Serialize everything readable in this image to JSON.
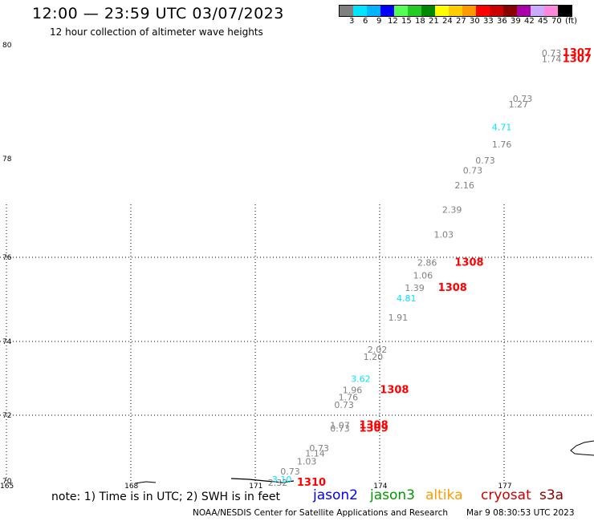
{
  "header": {
    "title": "12:00 — 23:59 UTC 03/07/2023",
    "subtitle": "12 hour collection of altimeter wave heights"
  },
  "colorbar": {
    "colors": [
      "#808080",
      "#00e5ff",
      "#00b4ff",
      "#0000ff",
      "#55ff55",
      "#22cc22",
      "#008800",
      "#ffff00",
      "#ffcc00",
      "#ff9900",
      "#ff0000",
      "#cc0000",
      "#880000",
      "#aa00aa",
      "#ccaaff",
      "#ff88dd",
      "#000000"
    ],
    "labels": [
      "3",
      "6",
      "9",
      "12",
      "15",
      "18",
      "21",
      "24",
      "27",
      "30",
      "33",
      "36",
      "39",
      "42",
      "45",
      "70"
    ],
    "unit": "(ft)"
  },
  "map": {
    "lon_range": [
      165,
      179
    ],
    "lat_range": [
      70,
      80
    ],
    "lon_ticks": [
      "165",
      "168",
      "171",
      "174",
      "177"
    ],
    "lat_ticks": [
      "70",
      "72",
      "74",
      "76",
      "78",
      "80"
    ],
    "observations": [
      {
        "value": "0.73",
        "lon": 177.9,
        "lat": 79.8,
        "color": "#808080"
      },
      {
        "value": "1.74",
        "lon": 177.9,
        "lat": 79.7,
        "color": "#808080"
      },
      {
        "value": "1307",
        "lon": 178.4,
        "lat": 79.8,
        "color": "#ff0000",
        "bold": true
      },
      {
        "value": "1307",
        "lon": 178.4,
        "lat": 79.7,
        "color": "#ff0000",
        "bold": true
      },
      {
        "value": "0.73",
        "lon": 177.2,
        "lat": 79.0,
        "color": "#808080"
      },
      {
        "value": "1.27",
        "lon": 177.1,
        "lat": 78.9,
        "color": "#808080"
      },
      {
        "value": "4.71",
        "lon": 176.7,
        "lat": 78.5,
        "color": "#00e5ff"
      },
      {
        "value": "1.76",
        "lon": 176.7,
        "lat": 78.2,
        "color": "#808080"
      },
      {
        "value": "0.73",
        "lon": 176.3,
        "lat": 77.9,
        "color": "#808080"
      },
      {
        "value": "0.73",
        "lon": 176.0,
        "lat": 77.7,
        "color": "#808080"
      },
      {
        "value": "2.16",
        "lon": 175.8,
        "lat": 77.4,
        "color": "#808080"
      },
      {
        "value": "2.39",
        "lon": 175.5,
        "lat": 76.9,
        "color": "#808080"
      },
      {
        "value": "1.03",
        "lon": 175.3,
        "lat": 76.4,
        "color": "#808080"
      },
      {
        "value": "2.86",
        "lon": 174.9,
        "lat": 75.8,
        "color": "#808080"
      },
      {
        "value": "1308",
        "lon": 175.8,
        "lat": 75.8,
        "color": "#ff0000",
        "bold": true
      },
      {
        "value": "1.06",
        "lon": 174.8,
        "lat": 75.5,
        "color": "#808080"
      },
      {
        "value": "1.39",
        "lon": 174.6,
        "lat": 75.2,
        "color": "#808080"
      },
      {
        "value": "1308",
        "lon": 175.4,
        "lat": 75.2,
        "color": "#ff0000",
        "bold": true
      },
      {
        "value": "4.81",
        "lon": 174.4,
        "lat": 74.95,
        "color": "#00e5ff"
      },
      {
        "value": "1.91",
        "lon": 174.2,
        "lat": 74.5,
        "color": "#808080"
      },
      {
        "value": "2.02",
        "lon": 173.7,
        "lat": 73.7,
        "color": "#808080"
      },
      {
        "value": "1.20",
        "lon": 173.6,
        "lat": 73.5,
        "color": "#808080"
      },
      {
        "value": "3.62",
        "lon": 173.3,
        "lat": 72.9,
        "color": "#00e5ff"
      },
      {
        "value": "1.96",
        "lon": 173.1,
        "lat": 72.6,
        "color": "#808080"
      },
      {
        "value": "1308",
        "lon": 174.0,
        "lat": 72.6,
        "color": "#ff0000",
        "bold": true
      },
      {
        "value": "1.76",
        "lon": 173.0,
        "lat": 72.4,
        "color": "#808080"
      },
      {
        "value": "0.73",
        "lon": 172.9,
        "lat": 72.2,
        "color": "#808080"
      },
      {
        "value": "1.07",
        "lon": 172.8,
        "lat": 71.6,
        "color": "#808080"
      },
      {
        "value": "0.73",
        "lon": 172.8,
        "lat": 71.5,
        "color": "#808080"
      },
      {
        "value": "1308",
        "lon": 173.5,
        "lat": 71.6,
        "color": "#ff0000",
        "bold": true
      },
      {
        "value": "1309",
        "lon": 173.5,
        "lat": 71.5,
        "color": "#ff0000",
        "bold": true
      },
      {
        "value": "0.73",
        "lon": 172.3,
        "lat": 70.9,
        "color": "#808080"
      },
      {
        "value": "1.14",
        "lon": 172.2,
        "lat": 70.75,
        "color": "#808080"
      },
      {
        "value": "1.03",
        "lon": 172.0,
        "lat": 70.5,
        "color": "#808080"
      },
      {
        "value": "0.73",
        "lon": 171.6,
        "lat": 70.2,
        "color": "#808080"
      },
      {
        "value": "3.10",
        "lon": 171.4,
        "lat": 69.95,
        "color": "#00e5ff"
      },
      {
        "value": "2.32",
        "lon": 171.3,
        "lat": 69.85,
        "color": "#808080"
      },
      {
        "value": "1310",
        "lon": 172.0,
        "lat": 69.85,
        "color": "#ff0000",
        "bold": true
      }
    ]
  },
  "footer": {
    "note": "note:  1) Time is in UTC;  2) SWH is in feet",
    "satellites": [
      {
        "name": "jason2",
        "color": "#0000ff"
      },
      {
        "name": "jason3",
        "color": "#009900"
      },
      {
        "name": "altika",
        "color": "#ff9900"
      },
      {
        "name": "cryosat",
        "color": "#cc0000"
      },
      {
        "name": "s3a",
        "color": "#880000"
      }
    ],
    "credit": "NOAA/NESDIS Center for Satellite Applications and Research",
    "timestamp": "Mar  9 08:30:53 UTC 2023"
  }
}
